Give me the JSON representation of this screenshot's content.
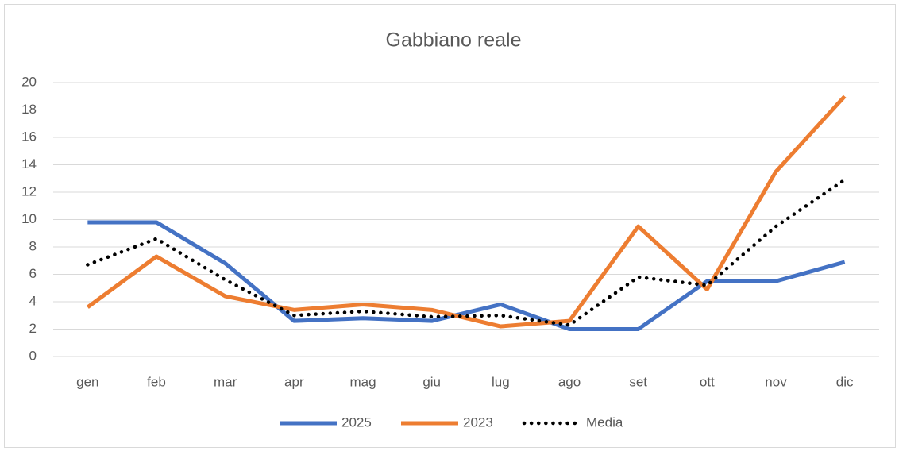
{
  "chart_data": {
    "type": "line",
    "title": "Gabbiano reale",
    "categories": [
      "gen",
      "feb",
      "mar",
      "apr",
      "mag",
      "giu",
      "lug",
      "ago",
      "set",
      "ott",
      "nov",
      "dic"
    ],
    "series": [
      {
        "name": "2025",
        "color": "#4472c4",
        "style": "solid",
        "values": [
          9.8,
          9.8,
          6.8,
          2.6,
          2.8,
          2.6,
          3.8,
          2.0,
          2.0,
          5.5,
          5.5,
          6.9
        ]
      },
      {
        "name": "2023",
        "color": "#ed7d31",
        "style": "solid",
        "values": [
          3.6,
          7.3,
          4.4,
          3.4,
          3.8,
          3.4,
          2.2,
          2.6,
          9.5,
          4.9,
          13.5,
          19.0
        ]
      },
      {
        "name": "Media",
        "color": "#000000",
        "style": "dotted",
        "values": [
          6.7,
          8.6,
          5.6,
          3.0,
          3.3,
          2.9,
          3.0,
          2.3,
          5.8,
          5.2,
          9.5,
          12.9
        ]
      }
    ],
    "ylim": [
      0,
      20
    ],
    "yticks": [
      0,
      2,
      4,
      6,
      8,
      10,
      12,
      14,
      16,
      18,
      20
    ],
    "grid": true,
    "legend": "bottom"
  }
}
